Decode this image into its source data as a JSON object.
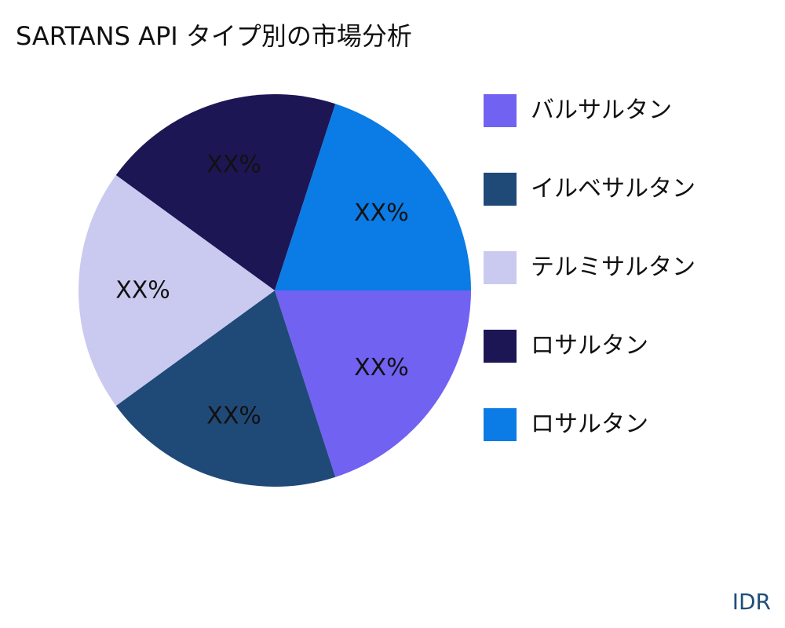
{
  "title": "SARTANS API タイプ別の市場分析",
  "source": "IDR",
  "chart_data": {
    "type": "pie",
    "title": "SARTANS API タイプ別の市場分析",
    "legend_position": "right",
    "slices": [
      {
        "name": "バルサルタン",
        "value": 20,
        "label": "XX%",
        "color": "#7262F2"
      },
      {
        "name": "イルベサルタン",
        "value": 20,
        "label": "XX%",
        "color": "#1F4A78"
      },
      {
        "name": "テルミサルタン",
        "value": 20,
        "label": "XX%",
        "color": "#CACAF0"
      },
      {
        "name": "ロサルタン",
        "value": 20,
        "label": "XX%",
        "color": "#1D1655"
      },
      {
        "name": "ロサルタン",
        "value": 20,
        "label": "XX%",
        "color": "#0B7BE5"
      }
    ]
  }
}
